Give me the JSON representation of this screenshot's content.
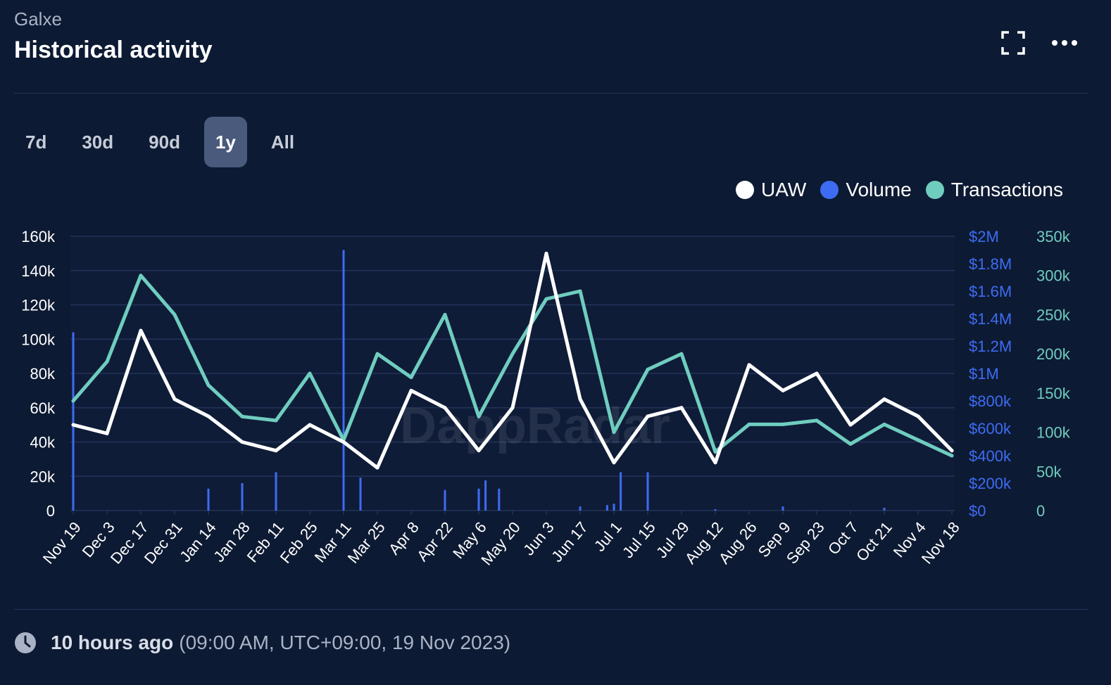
{
  "header": {
    "subtitle": "Galxe",
    "title": "Historical activity"
  },
  "tabs": [
    {
      "label": "7d",
      "active": false
    },
    {
      "label": "30d",
      "active": false
    },
    {
      "label": "90d",
      "active": false
    },
    {
      "label": "1y",
      "active": true
    },
    {
      "label": "All",
      "active": false
    }
  ],
  "legend": [
    {
      "label": "UAW",
      "color": "#ffffff"
    },
    {
      "label": "Volume",
      "color": "#3d6cf2"
    },
    {
      "label": "Transactions",
      "color": "#6fcdbf"
    }
  ],
  "footer": {
    "relative_time": "10 hours ago",
    "absolute_time": "(09:00 AM, UTC+09:00, 19 Nov 2023)"
  },
  "watermark": "DappRadar",
  "chart_data": {
    "type": "line",
    "x_labels": [
      "Nov 19",
      "Dec 3",
      "Dec 17",
      "Dec 31",
      "Jan 14",
      "Jan 28",
      "Feb 11",
      "Feb 25",
      "Mar 11",
      "Mar 25",
      "Apr 8",
      "Apr 22",
      "May 6",
      "May 20",
      "Jun 3",
      "Jun 17",
      "Jul 1",
      "Jul 15",
      "Jul 29",
      "Aug 12",
      "Aug 26",
      "Sep 9",
      "Sep 23",
      "Oct 7",
      "Oct 21",
      "Nov 4",
      "Nov 18"
    ],
    "y_left": {
      "ticks": [
        "0",
        "20k",
        "40k",
        "60k",
        "80k",
        "100k",
        "120k",
        "140k",
        "160k"
      ],
      "range": [
        0,
        160000
      ]
    },
    "y_right_volume": {
      "ticks": [
        "$0",
        "$200k",
        "$400k",
        "$600k",
        "$800k",
        "$1M",
        "$1.2M",
        "$1.4M",
        "$1.6M",
        "$1.8M",
        "$2M"
      ],
      "range": [
        0,
        2000000
      ],
      "color": "#3d6cf2"
    },
    "y_right_transactions": {
      "ticks": [
        "0",
        "50k",
        "100k",
        "150k",
        "200k",
        "250k",
        "300k",
        "350k"
      ],
      "range": [
        0,
        350000
      ],
      "color": "#6fcdbf"
    },
    "grid": true,
    "series": [
      {
        "name": "UAW",
        "axis": "left",
        "color": "#ffffff",
        "x_index": [
          0,
          1,
          2,
          3,
          4,
          5,
          6,
          7,
          8,
          9,
          10,
          11,
          12,
          13,
          14,
          15,
          16,
          17,
          18,
          19,
          20,
          21,
          22,
          23,
          24,
          25,
          26
        ],
        "values": [
          50000,
          45000,
          105000,
          65000,
          55000,
          40000,
          35000,
          50000,
          40000,
          25000,
          70000,
          60000,
          35000,
          60000,
          150000,
          65000,
          28000,
          55000,
          60000,
          28000,
          85000,
          70000,
          80000,
          50000,
          65000,
          55000,
          35000
        ]
      },
      {
        "name": "Transactions",
        "axis": "right_transactions",
        "color": "#6fcdbf",
        "x_index": [
          0,
          1,
          2,
          3,
          4,
          5,
          6,
          7,
          8,
          9,
          10,
          11,
          12,
          13,
          14,
          15,
          16,
          17,
          18,
          19,
          20,
          21,
          22,
          23,
          24,
          25,
          26
        ],
        "values": [
          140000,
          190000,
          300000,
          250000,
          160000,
          120000,
          115000,
          175000,
          90000,
          200000,
          170000,
          250000,
          120000,
          200000,
          270000,
          280000,
          100000,
          180000,
          200000,
          75000,
          110000,
          110000,
          115000,
          85000,
          110000,
          90000,
          70000
        ]
      },
      {
        "name": "Volume",
        "axis": "right_volume",
        "color": "#3d6cf2",
        "x_index": [
          0,
          4,
          5,
          6,
          8,
          8.5,
          11,
          12,
          12.2,
          12.6,
          15,
          15.8,
          16,
          16.2,
          17,
          19,
          21,
          24
        ],
        "values": [
          1300000,
          160000,
          200000,
          280000,
          1900000,
          240000,
          150000,
          160000,
          220000,
          160000,
          30000,
          40000,
          50000,
          280000,
          280000,
          10000,
          30000,
          20000
        ]
      }
    ]
  }
}
